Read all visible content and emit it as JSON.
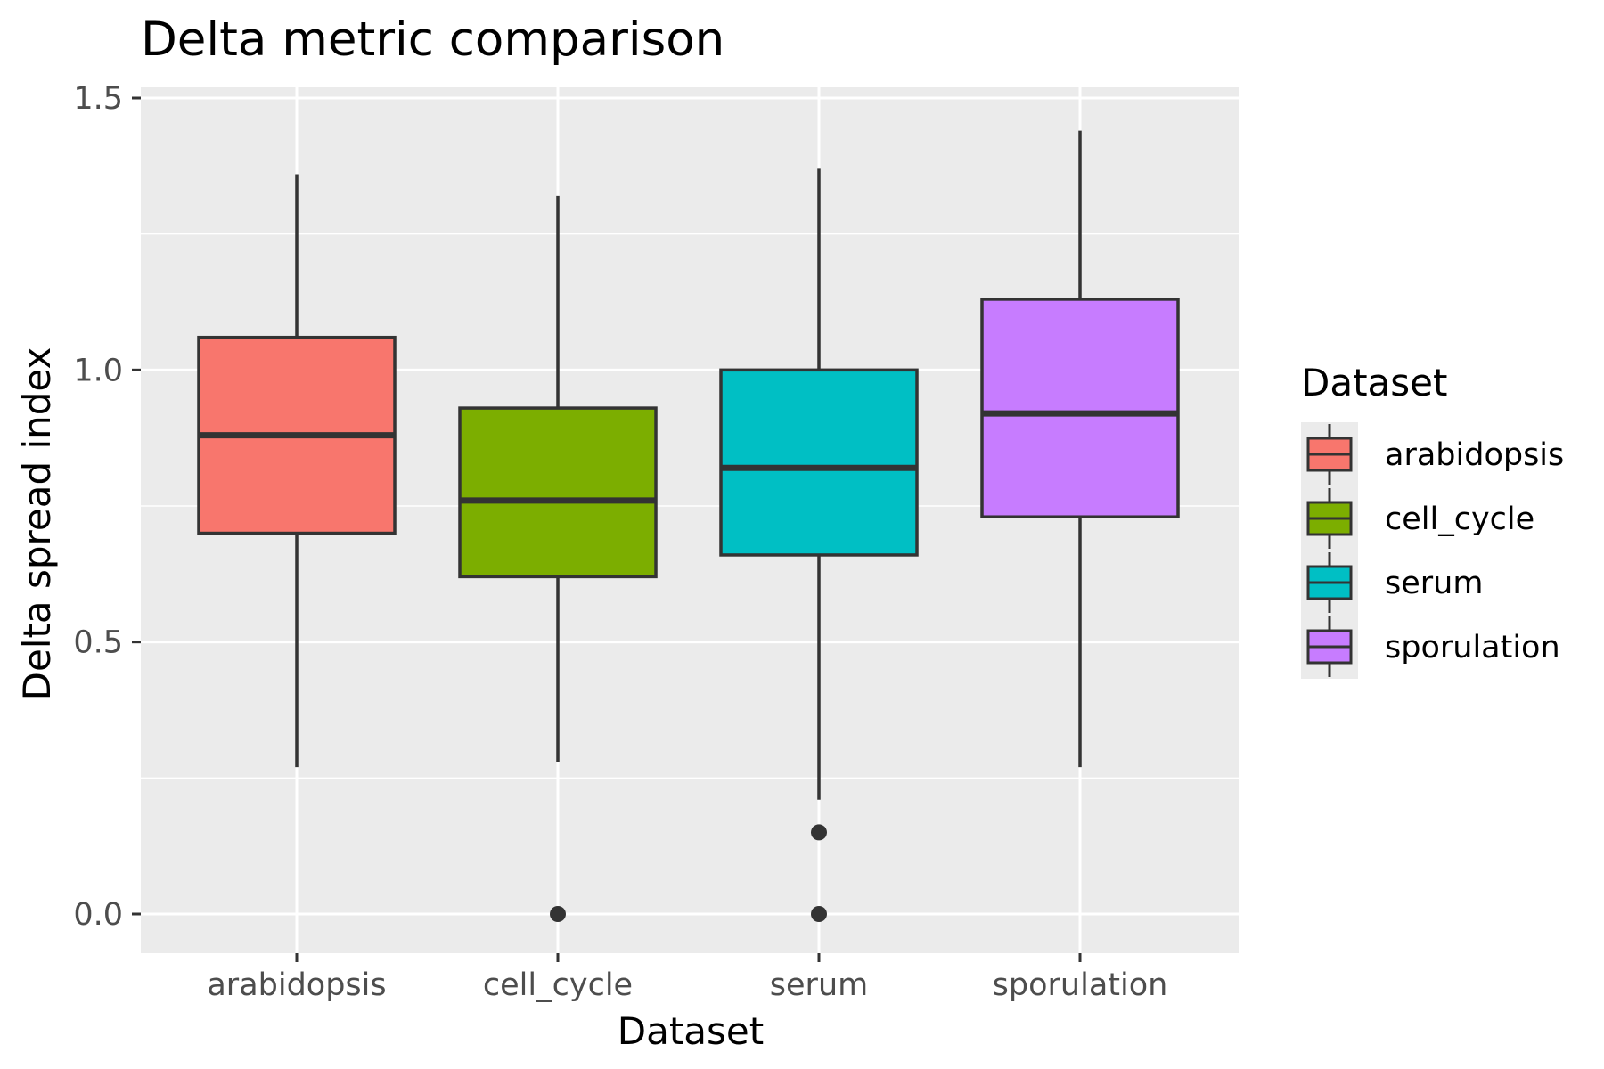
{
  "chart_data": {
    "type": "box",
    "title": "Delta metric comparison",
    "xlabel": "Dataset",
    "ylabel": "Delta spread index",
    "ylim": [
      -0.07,
      1.5
    ],
    "yticks": [
      "0.0",
      "0.5",
      "1.0",
      "1.5"
    ],
    "ytick_values": [
      0.0,
      0.5,
      1.0,
      1.5
    ],
    "categories": [
      "arabidopsis",
      "cell_cycle",
      "serum",
      "sporulation"
    ],
    "grid": true,
    "legend_position": "right",
    "legend_title": "Dataset",
    "boxes": [
      {
        "name": "arabidopsis",
        "color": "#F8766D",
        "whisker_low": 0.27,
        "q1": 0.7,
        "median": 0.88,
        "q3": 1.06,
        "whisker_high": 1.36,
        "outliers": []
      },
      {
        "name": "cell_cycle",
        "color": "#7CAE00",
        "whisker_low": 0.28,
        "q1": 0.62,
        "median": 0.76,
        "q3": 0.93,
        "whisker_high": 1.32,
        "outliers": [
          0.0
        ]
      },
      {
        "name": "serum",
        "color": "#00BFC4",
        "whisker_low": 0.21,
        "q1": 0.66,
        "median": 0.82,
        "q3": 1.0,
        "whisker_high": 1.37,
        "outliers": [
          0.15,
          0.0
        ]
      },
      {
        "name": "sporulation",
        "color": "#C77CFF",
        "whisker_low": 0.27,
        "q1": 0.73,
        "median": 0.92,
        "q3": 1.13,
        "whisker_high": 1.44,
        "outliers": []
      }
    ]
  },
  "colors": {
    "panel_background": "#EBEBEB",
    "grid_line": "#FFFFFF",
    "box_stroke": "#333333"
  }
}
